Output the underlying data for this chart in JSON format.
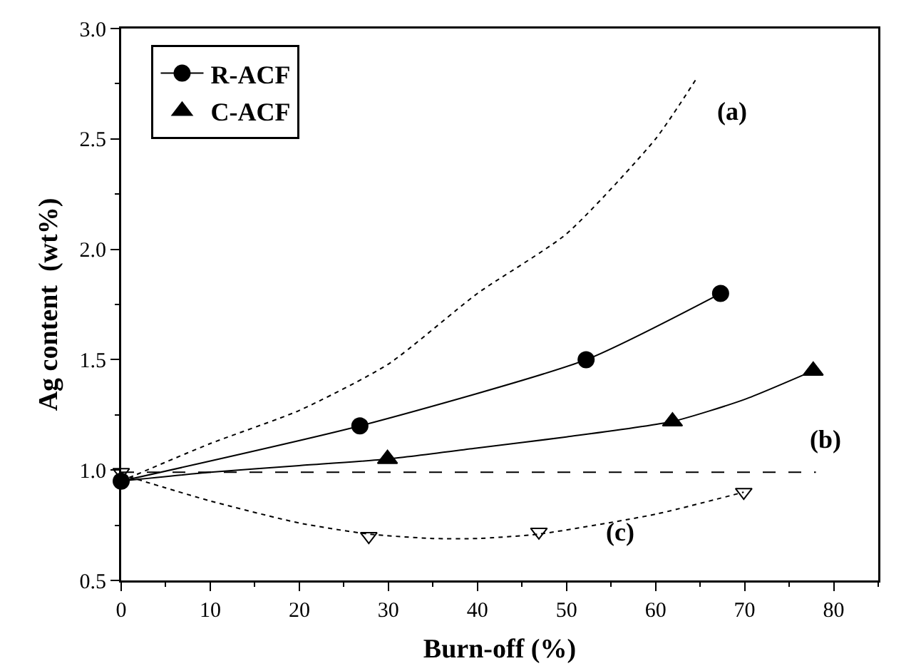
{
  "chart_data": {
    "type": "scatter",
    "xlabel": "Burn-off (%)",
    "ylabel": "Ag content  (wt%)",
    "xlim": [
      0,
      85
    ],
    "xticks": [
      0,
      10,
      20,
      30,
      40,
      50,
      60,
      70,
      80
    ],
    "ylim": [
      0.5,
      3.0
    ],
    "yticks": [
      {
        "value": 0.5,
        "label": "0.5"
      },
      {
        "value": 1.0,
        "label": "1.0"
      },
      {
        "value": 1.5,
        "label": "1.5"
      },
      {
        "value": 2.0,
        "label": "2.0"
      },
      {
        "value": 2.5,
        "label": "2.5"
      },
      {
        "value": 3.0,
        "label": "3.0"
      }
    ],
    "grid": false,
    "legend": "top left",
    "series": [
      {
        "type": "line",
        "name": "R-ACF",
        "color": "#000000",
        "marker": "circle",
        "line_style": "solid",
        "x": [
          0,
          26.8,
          52.2,
          67.3
        ],
        "values": [
          0.95,
          1.2,
          1.5,
          1.8
        ]
      },
      {
        "name": "C-ACF",
        "color": "#000000",
        "marker": "triangle",
        "x": [
          29.9,
          61.9,
          77.7
        ],
        "values": [
          1.05,
          1.22,
          1.45
        ]
      },
      {
        "color": "#000000",
        "marker": "triangle",
        "x": [
          0,
          27.8,
          46.9,
          69.9
        ],
        "values": [
          0.99,
          0.7,
          0.72,
          0.9
        ]
      },
      {
        "type": "line",
        "color": "#000000",
        "line_style": "solid",
        "marker": "none",
        "x": [
          0,
          10,
          20,
          29.9,
          40,
          50,
          61.9,
          70,
          77.7
        ],
        "values": [
          0.95,
          0.99,
          1.02,
          1.05,
          1.1,
          1.15,
          1.22,
          1.32,
          1.45
        ]
      },
      {
        "type": "line",
        "color": "#000000",
        "line_style": "dotted",
        "marker": "none",
        "x": [
          0,
          10,
          20,
          30,
          40,
          50,
          60,
          64.7
        ],
        "values": [
          0.95,
          1.12,
          1.27,
          1.48,
          1.8,
          2.07,
          2.5,
          2.78
        ]
      },
      {
        "type": "line",
        "color": "#000000",
        "line_style": "dashed",
        "marker": "none",
        "x": [
          0,
          78
        ],
        "values": [
          0.99,
          0.99
        ]
      },
      {
        "type": "line",
        "color": "#000000",
        "line_style": "dotted",
        "marker": "none",
        "x": [
          0,
          10,
          20,
          27.8,
          35,
          40,
          46.9,
          60,
          69.9
        ],
        "values": [
          0.98,
          0.86,
          0.76,
          0.71,
          0.69,
          0.69,
          0.71,
          0.8,
          0.9
        ]
      }
    ],
    "annotations": [
      "(a)",
      "(b)",
      "(c)"
    ]
  }
}
